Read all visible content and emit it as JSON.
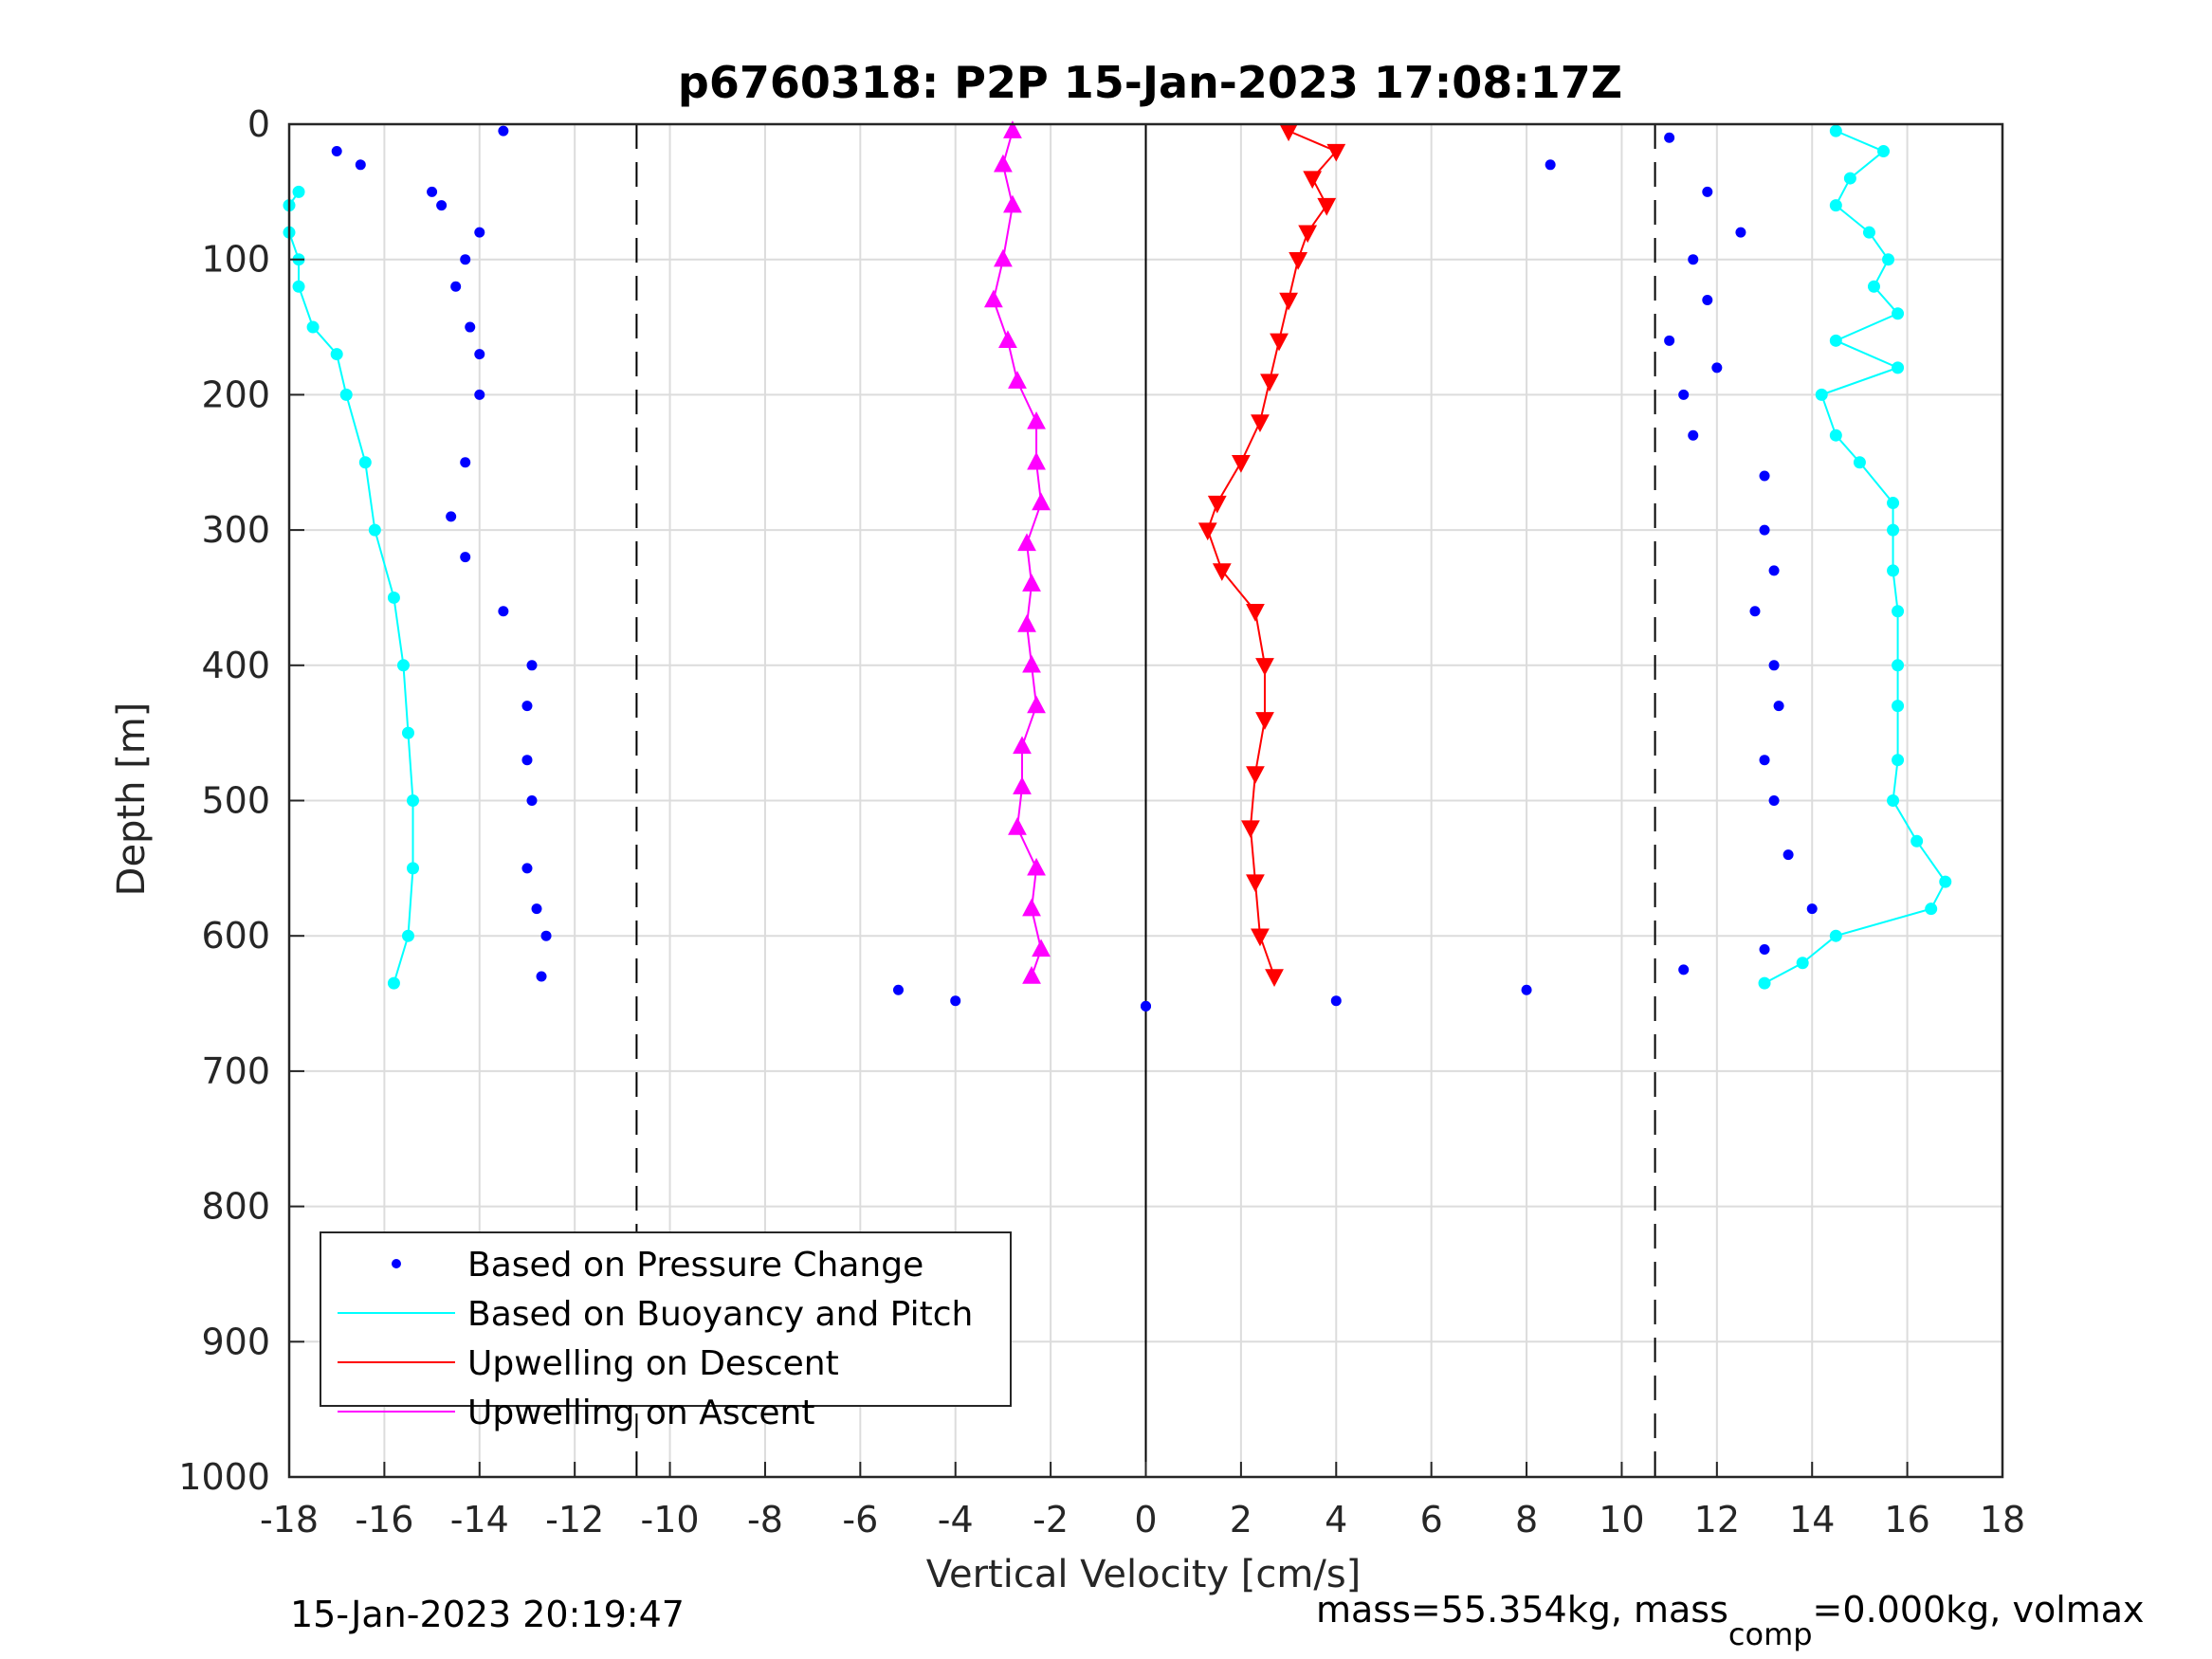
{
  "chart_data": {
    "type": "scatter",
    "title": "p6760318: P2P 15-Jan-2023 17:08:17Z",
    "xlabel": "Vertical Velocity [cm/s]",
    "ylabel": "Depth [m]",
    "xlim": [
      -18,
      18
    ],
    "ylim": [
      0,
      1000
    ],
    "y_reversed": true,
    "grid": true,
    "xticks": [
      "-18",
      "-16",
      "-14",
      "-12",
      "-10",
      "-8",
      "-6",
      "-4",
      "-2",
      "0",
      "2",
      "4",
      "6",
      "8",
      "10",
      "12",
      "14",
      "16",
      "18"
    ],
    "yticks": [
      "0",
      "100",
      "200",
      "300",
      "400",
      "500",
      "600",
      "700",
      "800",
      "900",
      "1000"
    ],
    "reference_lines": {
      "dashed_x": [
        -10.7,
        10.7
      ],
      "solid_x": [
        0
      ]
    },
    "legend": {
      "placement": "bottom-left",
      "entries": [
        {
          "label": "Based on Pressure Change",
          "color": "#0000ff",
          "style": "dot"
        },
        {
          "label": "Based on Buoyancy and Pitch",
          "color": "#00ffff",
          "style": "line"
        },
        {
          "label": "Upwelling on Descent",
          "color": "#ff0000",
          "style": "line"
        },
        {
          "label": "Upwelling on Ascent",
          "color": "#ff00ff",
          "style": "line"
        }
      ]
    },
    "series": [
      {
        "name": "Based on Pressure Change",
        "color": "#0000ff",
        "marker": "dot",
        "descent_profile": {
          "depth": [
            10,
            30,
            50,
            80,
            100,
            130,
            160,
            180,
            200,
            230,
            260,
            300,
            330,
            360,
            400,
            430,
            470,
            500,
            540,
            580,
            610,
            625,
            640,
            648,
            652
          ],
          "velocity": [
            11,
            8.5,
            11.8,
            12.5,
            11.5,
            11.8,
            11,
            12,
            11.3,
            11.5,
            13,
            13,
            13.2,
            12.8,
            13.2,
            13.3,
            13,
            13.2,
            13.5,
            14,
            13,
            11.3,
            8,
            4,
            0
          ]
        },
        "ascent_profile": {
          "depth": [
            652,
            648,
            640,
            630,
            600,
            580,
            550,
            500,
            470,
            430,
            400,
            360,
            320,
            290,
            250,
            200,
            170,
            150,
            120,
            100,
            80,
            60,
            50,
            30,
            20,
            5
          ],
          "velocity": [
            0,
            -4,
            -5.2,
            -12.7,
            -12.6,
            -12.8,
            -13,
            -12.9,
            -13,
            -13,
            -12.9,
            -13.5,
            -14.3,
            -14.6,
            -14.3,
            -14,
            -14,
            -14.2,
            -14.5,
            -14.3,
            -14,
            -14.8,
            -15,
            -16.5,
            -17,
            -13.5
          ]
        }
      },
      {
        "name": "Based on Buoyancy and Pitch",
        "color": "#00ffff",
        "marker": "circle-line",
        "descent_profile": {
          "depth": [
            5,
            20,
            40,
            60,
            80,
            100,
            120,
            140,
            160,
            180,
            200,
            230,
            250,
            280,
            300,
            330,
            360,
            400,
            430,
            470,
            500,
            530,
            560,
            580,
            600,
            620,
            635
          ],
          "velocity": [
            14.5,
            15.5,
            14.8,
            14.5,
            15.2,
            15.6,
            15.3,
            15.8,
            14.5,
            15.8,
            14.2,
            14.5,
            15,
            15.7,
            15.7,
            15.7,
            15.8,
            15.8,
            15.8,
            15.8,
            15.7,
            16.2,
            16.8,
            16.5,
            14.5,
            13.8,
            13
          ]
        },
        "ascent_profile": {
          "depth": [
            635,
            600,
            550,
            500,
            450,
            400,
            350,
            300,
            250,
            200,
            170,
            150,
            120,
            100,
            80,
            60,
            50
          ],
          "velocity": [
            -15.8,
            -15.5,
            -15.4,
            -15.4,
            -15.5,
            -15.6,
            -15.8,
            -16.2,
            -16.4,
            -16.8,
            -17,
            -17.5,
            -17.8,
            -17.8,
            -18,
            -18,
            -17.8
          ]
        }
      },
      {
        "name": "Upwelling on Descent",
        "color": "#ff0000",
        "marker": "triangle-down",
        "depth": [
          5,
          20,
          40,
          60,
          80,
          100,
          130,
          160,
          190,
          220,
          250,
          280,
          300,
          330,
          360,
          400,
          440,
          480,
          520,
          560,
          600,
          630
        ],
        "velocity": [
          3,
          4,
          3.5,
          3.8,
          3.4,
          3.2,
          3,
          2.8,
          2.6,
          2.4,
          2,
          1.5,
          1.3,
          1.6,
          2.3,
          2.5,
          2.5,
          2.3,
          2.2,
          2.3,
          2.4,
          2.7
        ]
      },
      {
        "name": "Upwelling on Ascent",
        "color": "#ff00ff",
        "marker": "triangle-up",
        "depth": [
          5,
          30,
          60,
          100,
          130,
          160,
          190,
          220,
          250,
          280,
          310,
          340,
          370,
          400,
          430,
          460,
          490,
          520,
          550,
          580,
          610,
          630
        ],
        "velocity": [
          -2.8,
          -3,
          -2.8,
          -3,
          -3.2,
          -2.9,
          -2.7,
          -2.3,
          -2.3,
          -2.2,
          -2.5,
          -2.4,
          -2.5,
          -2.4,
          -2.3,
          -2.6,
          -2.6,
          -2.7,
          -2.3,
          -2.4,
          -2.2,
          -2.4
        ]
      }
    ]
  },
  "footer": {
    "timestamp": "15-Jan-2023 20:19:47",
    "mass_text": "mass=55.354kg, mass",
    "mass_sub": "comp",
    "mass_rest": "=0.000kg, volmax"
  }
}
